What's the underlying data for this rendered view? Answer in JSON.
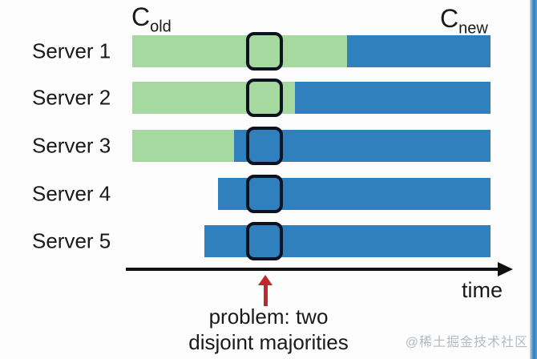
{
  "title_labels": {
    "c_old": {
      "main": "C",
      "sub": "old"
    },
    "c_new": {
      "main": "C",
      "sub": "new"
    }
  },
  "servers": [
    {
      "name": "Server 1",
      "start_pct": 0,
      "split_pct": 60.0,
      "end_pct": 100
    },
    {
      "name": "Server 2",
      "start_pct": 0,
      "split_pct": 45.4,
      "end_pct": 100
    },
    {
      "name": "Server 3",
      "start_pct": 0,
      "split_pct": 28.4,
      "end_pct": 100
    },
    {
      "name": "Server 4",
      "start_pct": 23.9,
      "split_pct": 23.9,
      "end_pct": 100
    },
    {
      "name": "Server 5",
      "start_pct": 20.1,
      "split_pct": 20.1,
      "end_pct": 100
    }
  ],
  "marker": {
    "left_pct": 31.8,
    "width_pct": 10.3
  },
  "axis": {
    "label": "time"
  },
  "annotation": {
    "line1": "problem: two",
    "line2": "disjoint majorities"
  },
  "watermark": "@稀土掘金技术社区",
  "colors": {
    "old_config": "#a6d99f",
    "new_config": "#2f80bd",
    "marker_border": "#0c1220",
    "problem_arrow": "#c1272d",
    "axis": "#111111",
    "text": "#1a1a1a",
    "watermark": "#b3bac3",
    "edge_strip": "#2e7cb8"
  }
}
